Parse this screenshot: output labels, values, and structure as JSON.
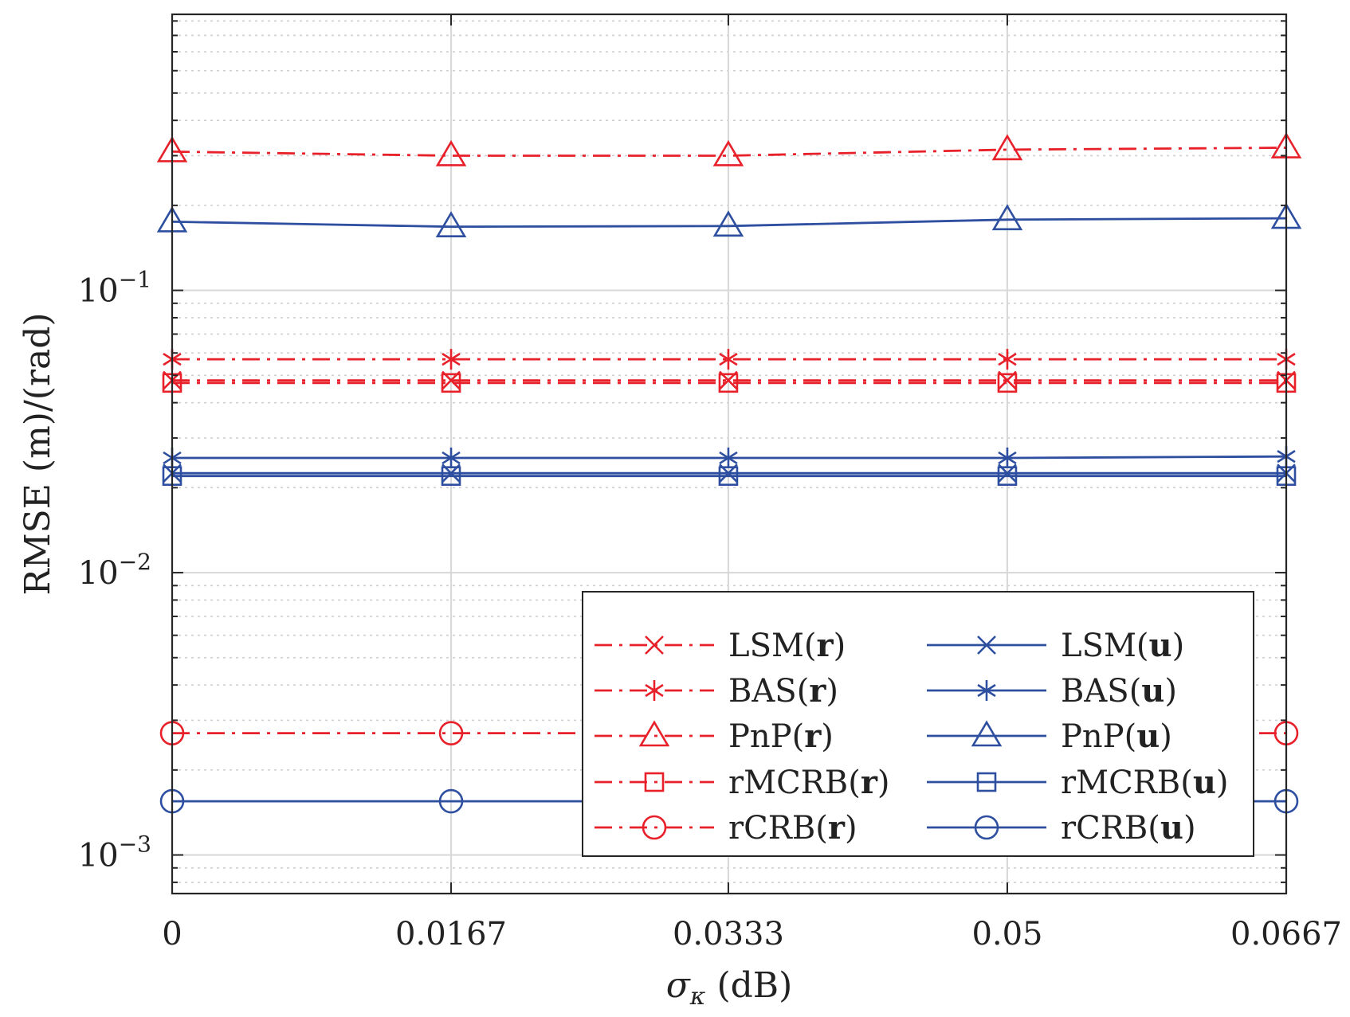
{
  "chart_data": {
    "type": "line",
    "title": "",
    "xlabel": "σκ (dB)",
    "xlabel_parts": {
      "symbol": "σ",
      "subscript": "κ",
      "unit": " (dB)"
    },
    "ylabel": "RMSE (m)/(rad)",
    "yscale": "log",
    "x": [
      0,
      0.0167,
      0.0333,
      0.05,
      0.0667
    ],
    "x_tick_labels": [
      "0",
      "0.0167",
      "0.0333",
      "0.05",
      "0.0667"
    ],
    "xlim": [
      0,
      0.0667
    ],
    "ylim": [
      0.00073,
      0.95
    ],
    "y_ticks": [
      {
        "value": 0.001,
        "base": "10",
        "exp": "−3"
      },
      {
        "value": 0.01,
        "base": "10",
        "exp": "−2"
      },
      {
        "value": 0.1,
        "base": "10",
        "exp": "−1"
      }
    ],
    "grid": true,
    "legend_position": "bottom-right",
    "legend_columns": 2,
    "series": [
      {
        "name": "LSM(r)",
        "label_base": "LSM",
        "label_arg": "r",
        "color": "#e8202a",
        "line": "dashdot",
        "marker": "x",
        "values": [
          0.048,
          0.048,
          0.048,
          0.048,
          0.048
        ]
      },
      {
        "name": "BAS(r)",
        "label_base": "BAS",
        "label_arg": "r",
        "color": "#e8202a",
        "line": "dashdot",
        "marker": "asterisk",
        "values": [
          0.057,
          0.057,
          0.057,
          0.057,
          0.057
        ]
      },
      {
        "name": "PnP(r)",
        "label_base": "PnP",
        "label_arg": "r",
        "color": "#e8202a",
        "line": "dashdot",
        "marker": "triangle",
        "values": [
          0.31,
          0.3,
          0.3,
          0.315,
          0.32
        ]
      },
      {
        "name": "rMCRB(r)",
        "label_base": "rMCRB",
        "label_arg": "r",
        "color": "#e8202a",
        "line": "dashdot",
        "marker": "square",
        "values": [
          0.047,
          0.047,
          0.047,
          0.047,
          0.047
        ]
      },
      {
        "name": "rCRB(r)",
        "label_base": "rCRB",
        "label_arg": "r",
        "color": "#e8202a",
        "line": "dashdot",
        "marker": "circle",
        "values": [
          0.0027,
          0.0027,
          0.0027,
          0.0027,
          0.0027
        ]
      },
      {
        "name": "LSM(u)",
        "label_base": "LSM",
        "label_arg": "u",
        "color": "#2e4fa0",
        "line": "solid",
        "marker": "x",
        "values": [
          0.0225,
          0.0225,
          0.0225,
          0.0225,
          0.0225
        ]
      },
      {
        "name": "BAS(u)",
        "label_base": "BAS",
        "label_arg": "u",
        "color": "#2e4fa0",
        "line": "solid",
        "marker": "asterisk",
        "values": [
          0.0255,
          0.0255,
          0.0255,
          0.0255,
          0.0258
        ]
      },
      {
        "name": "PnP(u)",
        "label_base": "PnP",
        "label_arg": "u",
        "color": "#2e4fa0",
        "line": "solid",
        "marker": "triangle",
        "values": [
          0.175,
          0.168,
          0.169,
          0.178,
          0.18
        ]
      },
      {
        "name": "rMCRB(u)",
        "label_base": "rMCRB",
        "label_arg": "u",
        "color": "#2e4fa0",
        "line": "solid",
        "marker": "square",
        "values": [
          0.022,
          0.022,
          0.022,
          0.022,
          0.022
        ]
      },
      {
        "name": "rCRB(u)",
        "label_base": "rCRB",
        "label_arg": "u",
        "color": "#2e4fa0",
        "line": "solid",
        "marker": "circle",
        "values": [
          0.00155,
          0.00155,
          0.00155,
          0.00155,
          0.00155
        ]
      }
    ]
  }
}
